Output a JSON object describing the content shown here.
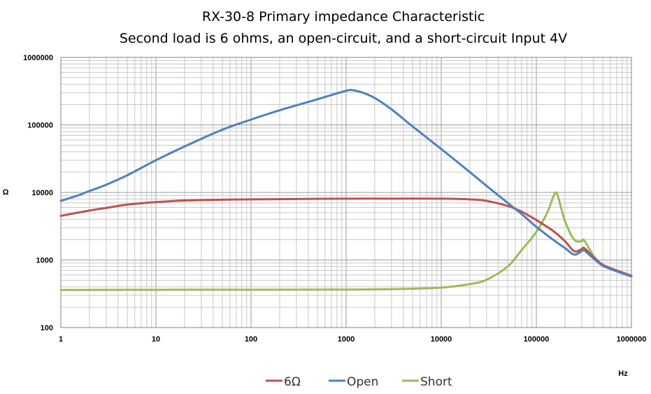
{
  "chart_data": {
    "type": "line",
    "title": "RX-30-8  Primary impedance Characteristic",
    "subtitle": "Second load is 6 ohms, an open-circuit, and a short-circuit     Input 4V",
    "xlabel": "Hz",
    "ylabel": "Ω",
    "xscale": "log",
    "yscale": "log",
    "xlim": [
      1,
      1000000
    ],
    "ylim": [
      100,
      1000000
    ],
    "xticks": [
      "1",
      "10",
      "100",
      "1000",
      "10000",
      "100000",
      "1000000"
    ],
    "yticks": [
      "100",
      "1000",
      "10000",
      "100000",
      "1000000"
    ],
    "grid": true,
    "legend_position": "bottom",
    "series": [
      {
        "name": "6Ω",
        "color": "#c0504d",
        "points": [
          [
            1,
            4500
          ],
          [
            2,
            5400
          ],
          [
            3,
            5900
          ],
          [
            5,
            6600
          ],
          [
            10,
            7200
          ],
          [
            20,
            7600
          ],
          [
            50,
            7800
          ],
          [
            100,
            7900
          ],
          [
            300,
            8000
          ],
          [
            1000,
            8100
          ],
          [
            3000,
            8100
          ],
          [
            10000,
            8100
          ],
          [
            20000,
            7900
          ],
          [
            30000,
            7500
          ],
          [
            50000,
            6300
          ],
          [
            70000,
            5200
          ],
          [
            100000,
            3900
          ],
          [
            150000,
            2700
          ],
          [
            200000,
            1900
          ],
          [
            250000,
            1350
          ],
          [
            300000,
            1450
          ],
          [
            320000,
            1500
          ],
          [
            400000,
            1100
          ],
          [
            500000,
            850
          ],
          [
            700000,
            700
          ],
          [
            1000000,
            580
          ]
        ]
      },
      {
        "name": "Open",
        "color": "#4f81bd",
        "points": [
          [
            1,
            7500
          ],
          [
            1.5,
            9000
          ],
          [
            2,
            10500
          ],
          [
            3,
            13000
          ],
          [
            5,
            18000
          ],
          [
            10,
            30000
          ],
          [
            20,
            48000
          ],
          [
            50,
            85000
          ],
          [
            100,
            120000
          ],
          [
            200,
            165000
          ],
          [
            500,
            240000
          ],
          [
            1000,
            320000
          ],
          [
            1200,
            325000
          ],
          [
            1500,
            300000
          ],
          [
            2000,
            250000
          ],
          [
            3000,
            170000
          ],
          [
            5000,
            95000
          ],
          [
            10000,
            44000
          ],
          [
            20000,
            20000
          ],
          [
            30000,
            12500
          ],
          [
            50000,
            7000
          ],
          [
            70000,
            4800
          ],
          [
            100000,
            3100
          ],
          [
            150000,
            2000
          ],
          [
            200000,
            1500
          ],
          [
            250000,
            1200
          ],
          [
            300000,
            1350
          ],
          [
            320000,
            1380
          ],
          [
            400000,
            1050
          ],
          [
            500000,
            820
          ],
          [
            700000,
            680
          ],
          [
            1000000,
            570
          ]
        ]
      },
      {
        "name": "Short",
        "color": "#9bbb59",
        "points": [
          [
            1,
            360
          ],
          [
            10,
            362
          ],
          [
            100,
            363
          ],
          [
            1000,
            365
          ],
          [
            3000,
            370
          ],
          [
            10000,
            390
          ],
          [
            20000,
            440
          ],
          [
            30000,
            510
          ],
          [
            50000,
            800
          ],
          [
            70000,
            1400
          ],
          [
            100000,
            2600
          ],
          [
            130000,
            5000
          ],
          [
            150000,
            8500
          ],
          [
            160000,
            10000
          ],
          [
            170000,
            8500
          ],
          [
            200000,
            3800
          ],
          [
            250000,
            2000
          ],
          [
            300000,
            1900
          ],
          [
            320000,
            1950
          ],
          [
            400000,
            1150
          ],
          [
            500000,
            850
          ],
          [
            700000,
            700
          ],
          [
            1000000,
            590
          ]
        ]
      }
    ]
  }
}
